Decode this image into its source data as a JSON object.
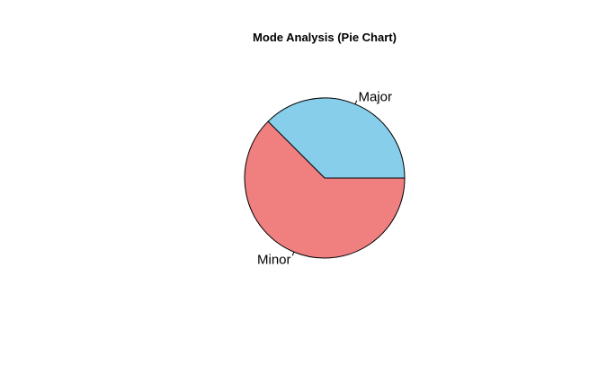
{
  "chart_data": {
    "type": "pie",
    "title": "Mode Analysis (Pie Chart)",
    "categories": [
      "Major",
      "Minor"
    ],
    "values": [
      37.5,
      62.5
    ],
    "colors": [
      "#87ceeb",
      "#f08080"
    ],
    "start_angle_deg": 0,
    "direction": "counterclockwise",
    "legend": "none",
    "border_color": "#000000"
  }
}
